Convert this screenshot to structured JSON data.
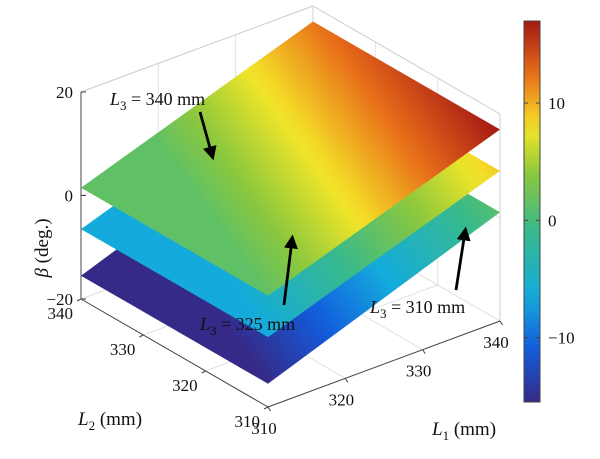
{
  "chart_data": {
    "type": "surface",
    "xlabel": "L1 (mm)",
    "ylabel": "L2 (mm)",
    "zlabel": "β (deg.)",
    "x_axis": {
      "symbol": "L",
      "sub": "1",
      "unit": "(mm)",
      "ticks": [
        "310",
        "320",
        "330",
        "340"
      ],
      "range": [
        310,
        340
      ]
    },
    "y_axis": {
      "symbol": "L",
      "sub": "2",
      "unit": "(mm)",
      "ticks": [
        "310",
        "320",
        "330",
        "340"
      ],
      "range": [
        310,
        340
      ]
    },
    "z_axis": {
      "symbol": "β",
      "unit": "(deg.)",
      "ticks": [
        "−20",
        "0",
        "20"
      ],
      "range": [
        -20,
        20
      ]
    },
    "colorbar": {
      "ticks": [
        "−10",
        "0",
        "10"
      ],
      "range": [
        -15.5,
        17
      ],
      "colormap": "parula-jet"
    },
    "series": [
      {
        "name": "L3 = 340 mm",
        "symbol": "L",
        "sub": "3",
        "eq": " = 340 mm",
        "z_min": 1.5,
        "z_max": 17
      },
      {
        "name": "L3 = 325 mm",
        "symbol": "L",
        "sub": "3",
        "eq": " = 325 mm",
        "z_min": -6.5,
        "z_max": 9
      },
      {
        "name": "L3 = 310 mm",
        "symbol": "L",
        "sub": "3",
        "eq": " = 310 mm",
        "z_min": -15.5,
        "z_max": 1
      }
    ]
  }
}
